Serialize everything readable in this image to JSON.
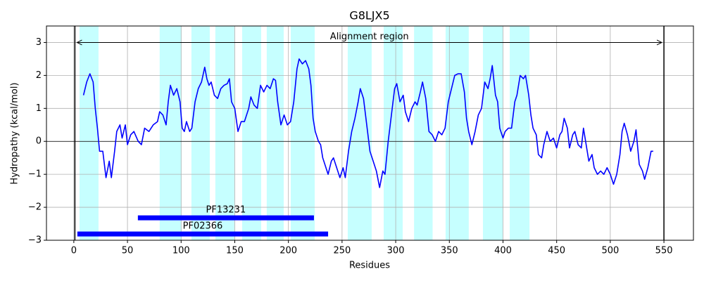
{
  "chart_data": {
    "type": "line",
    "title": "G8LJX5",
    "x_label": "Residues",
    "y_label": "Hydropathy (kcal/mol)",
    "xlim": [
      -25.5,
      577.5
    ],
    "ylim": [
      -3,
      3.5
    ],
    "xticks": [
      0,
      50,
      100,
      150,
      200,
      250,
      300,
      350,
      400,
      450,
      500,
      550
    ],
    "yticks": [
      {
        "value": -3,
        "label": "−3"
      },
      {
        "value": -2,
        "label": "−2"
      },
      {
        "value": -1,
        "label": "−1"
      },
      0,
      1,
      2,
      3
    ],
    "grid": true,
    "color": "#0000ff",
    "x": [
      9,
      12,
      15,
      18,
      20,
      22,
      24,
      27,
      30,
      33,
      35,
      38,
      40,
      43,
      45,
      48,
      50,
      53,
      56,
      60,
      63,
      66,
      70,
      74,
      78,
      80,
      83,
      86,
      88,
      90,
      93,
      96,
      99,
      101,
      103,
      105,
      108,
      110,
      113,
      116,
      119,
      122,
      124,
      126,
      128,
      131,
      134,
      137,
      140,
      143,
      145,
      147,
      150,
      153,
      156,
      159,
      163,
      165,
      168,
      171,
      174,
      177,
      180,
      183,
      186,
      188,
      190,
      193,
      196,
      199,
      202,
      205,
      208,
      210,
      213,
      216,
      219,
      221,
      223,
      225,
      228,
      230,
      232,
      235,
      237,
      240,
      242,
      245,
      248,
      251,
      253,
      256,
      259,
      262,
      265,
      267,
      270,
      273,
      276,
      279,
      282,
      285,
      288,
      290,
      293,
      296,
      299,
      301,
      304,
      307,
      309,
      312,
      315,
      318,
      320,
      323,
      325,
      328,
      331,
      334,
      337,
      340,
      343,
      346,
      349,
      352,
      355,
      358,
      361,
      364,
      366,
      368,
      371,
      374,
      377,
      380,
      383,
      386,
      388,
      390,
      393,
      395,
      397,
      400,
      402,
      405,
      408,
      411,
      413,
      416,
      419,
      421,
      424,
      426,
      428,
      431,
      433,
      436,
      438,
      441,
      444,
      447,
      450,
      453,
      455,
      457,
      460,
      462,
      465,
      467,
      470,
      473,
      475,
      478,
      480,
      483,
      485,
      488,
      491,
      494,
      497,
      500,
      503,
      506,
      509,
      511,
      513,
      516,
      519,
      522,
      524,
      527,
      530,
      532,
      535,
      538,
      540
    ],
    "values": [
      1.4,
      1.8,
      2.05,
      1.8,
      1.0,
      0.4,
      -0.3,
      -0.3,
      -1.1,
      -0.6,
      -1.1,
      -0.3,
      0.3,
      0.5,
      0.1,
      0.5,
      -0.1,
      0.2,
      0.3,
      0.0,
      -0.1,
      0.4,
      0.3,
      0.5,
      0.6,
      0.9,
      0.8,
      0.5,
      1.2,
      1.7,
      1.4,
      1.6,
      1.2,
      0.4,
      0.3,
      0.6,
      0.3,
      0.4,
      1.2,
      1.6,
      1.8,
      2.25,
      1.9,
      1.7,
      1.8,
      1.4,
      1.3,
      1.6,
      1.7,
      1.75,
      1.9,
      1.2,
      1.0,
      0.3,
      0.6,
      0.6,
      1.0,
      1.35,
      1.1,
      1.0,
      1.7,
      1.5,
      1.7,
      1.6,
      1.9,
      1.85,
      1.2,
      0.5,
      0.8,
      0.5,
      0.6,
      1.2,
      2.2,
      2.5,
      2.35,
      2.45,
      2.2,
      1.7,
      0.7,
      0.3,
      0.0,
      -0.1,
      -0.5,
      -0.8,
      -1.0,
      -0.6,
      -0.5,
      -0.8,
      -1.1,
      -0.8,
      -1.1,
      -0.3,
      0.3,
      0.7,
      1.2,
      1.6,
      1.3,
      0.5,
      -0.3,
      -0.6,
      -0.9,
      -1.4,
      -0.9,
      -1.0,
      0.0,
      0.8,
      1.6,
      1.75,
      1.2,
      1.4,
      0.9,
      0.6,
      1.0,
      1.2,
      1.1,
      1.5,
      1.8,
      1.3,
      0.3,
      0.2,
      0.0,
      0.3,
      0.2,
      0.4,
      1.2,
      1.6,
      2.0,
      2.05,
      2.05,
      1.5,
      0.7,
      0.3,
      -0.1,
      0.3,
      0.8,
      1.0,
      1.8,
      1.6,
      1.9,
      2.3,
      1.4,
      1.2,
      0.4,
      0.1,
      0.3,
      0.4,
      0.4,
      1.2,
      1.4,
      2.0,
      1.9,
      2.0,
      1.4,
      0.8,
      0.4,
      0.2,
      -0.4,
      -0.5,
      -0.1,
      0.3,
      0.0,
      0.1,
      -0.2,
      0.2,
      0.3,
      0.7,
      0.4,
      -0.2,
      0.2,
      0.3,
      -0.1,
      -0.2,
      0.4,
      -0.2,
      -0.6,
      -0.4,
      -0.8,
      -1.0,
      -0.9,
      -1.0,
      -0.8,
      -1.0,
      -1.3,
      -1.0,
      -0.4,
      0.3,
      0.55,
      0.2,
      -0.3,
      0.0,
      0.35,
      -0.7,
      -0.9,
      -1.15,
      -0.8,
      -0.3,
      -0.3
    ],
    "region_color": "#c6ffff",
    "regions": [
      {
        "start": 5.3,
        "end": 23
      },
      {
        "start": 80,
        "end": 100.4
      },
      {
        "start": 109.6,
        "end": 126.7
      },
      {
        "start": 131.9,
        "end": 149.6
      },
      {
        "start": 156.9,
        "end": 174.6
      },
      {
        "start": 179.8,
        "end": 195.6
      },
      {
        "start": 202.2,
        "end": 224.5
      },
      {
        "start": 255.3,
        "end": 277.6
      },
      {
        "start": 288.8,
        "end": 306.5
      },
      {
        "start": 317.1,
        "end": 334.4
      },
      {
        "start": 346.5,
        "end": 368.1
      },
      {
        "start": 381.3,
        "end": 399.7
      },
      {
        "start": 406.3,
        "end": 424.7
      }
    ],
    "domain_color": "#0000ff",
    "domains": [
      {
        "name": "PF13231",
        "start": 59.7,
        "end": 223.8,
        "y": -2.32
      },
      {
        "name": "PF02366",
        "start": 3.3,
        "end": 237,
        "y": -2.81
      }
    ],
    "alignment": {
      "label": "Alignment region",
      "start": 3,
      "end": 548,
      "y": 3
    },
    "boundaries": [
      1,
      550
    ]
  }
}
